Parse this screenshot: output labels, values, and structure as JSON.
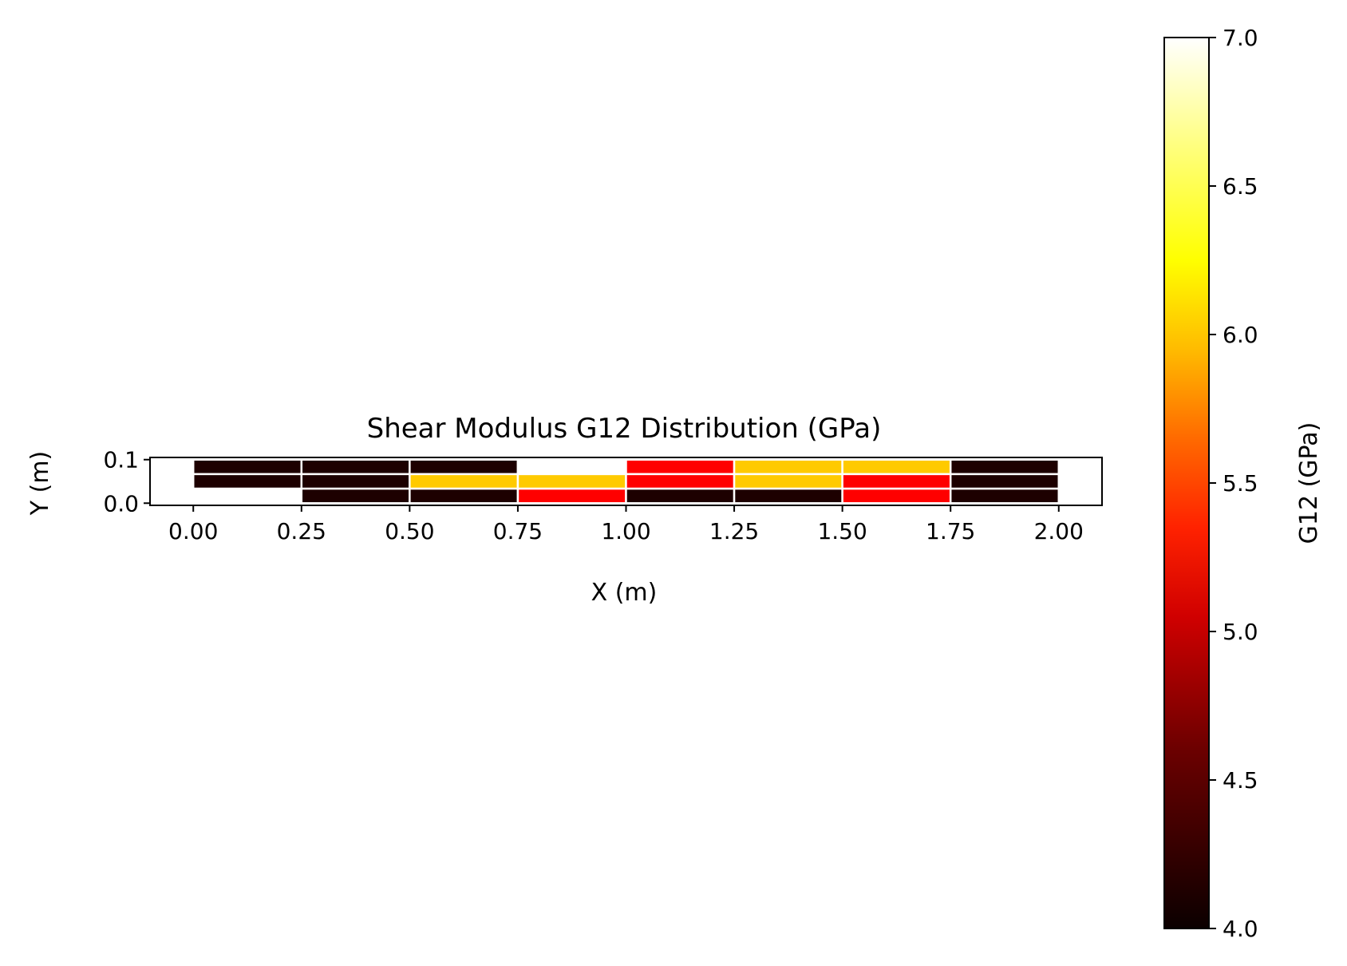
{
  "chart_data": {
    "type": "heatmap",
    "title": "Shear Modulus G12 Distribution (GPa)",
    "xlabel": "X (m)",
    "ylabel": "Y (m)",
    "xlim": [
      -0.1,
      2.1
    ],
    "ylim": [
      -0.005,
      0.105
    ],
    "x_ticks": [
      0.0,
      0.25,
      0.5,
      0.75,
      1.0,
      1.25,
      1.5,
      1.75,
      2.0
    ],
    "x_tick_labels": [
      "0.00",
      "0.25",
      "0.50",
      "0.75",
      "1.00",
      "1.25",
      "1.50",
      "1.75",
      "2.00"
    ],
    "y_ticks": [
      0.0,
      0.1
    ],
    "y_tick_labels": [
      "0.0",
      "0.1"
    ],
    "x_edges": [
      0.0,
      0.25,
      0.5,
      0.75,
      1.0,
      1.25,
      1.5,
      1.75,
      2.0
    ],
    "y_edges": [
      0.0,
      0.0333,
      0.0667,
      0.1
    ],
    "values": [
      [
        4.0,
        4.0,
        4.0,
        7.0,
        5.0,
        6.0,
        6.0,
        4.0
      ],
      [
        4.0,
        4.0,
        6.0,
        6.0,
        5.0,
        6.0,
        5.0,
        4.0
      ],
      [
        7.0,
        4.0,
        4.0,
        5.0,
        4.0,
        4.0,
        5.0,
        4.0
      ]
    ],
    "grid": false,
    "colorbar": {
      "label": "G12 (GPa)",
      "min": 4.0,
      "max": 7.0,
      "ticks": [
        4.0,
        4.5,
        5.0,
        5.5,
        6.0,
        6.5,
        7.0
      ],
      "tick_labels": [
        "4.0",
        "4.5",
        "5.0",
        "5.5",
        "6.0",
        "6.5",
        "7.0"
      ],
      "colormap": "hot"
    },
    "cell_edge_color": "#ffffff"
  }
}
